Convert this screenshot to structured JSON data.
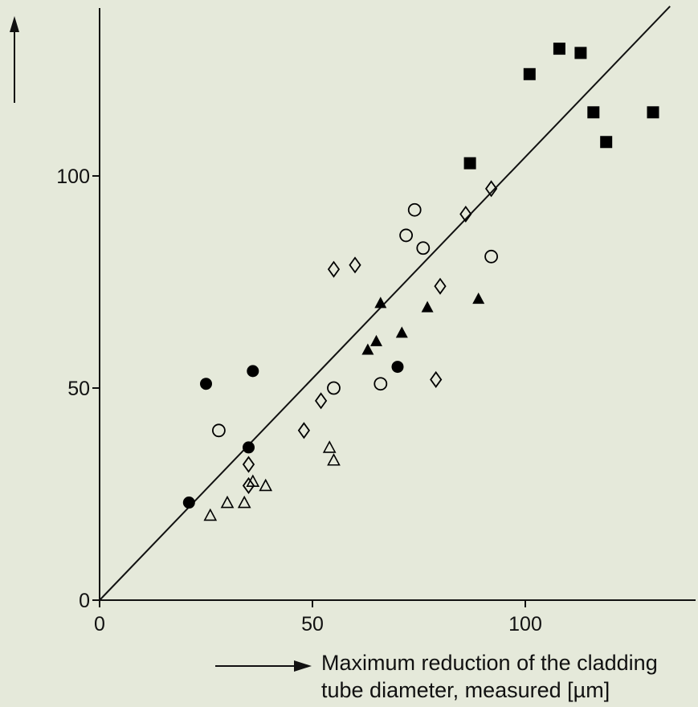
{
  "chart_data": {
    "type": "scatter",
    "xlabel_lines": [
      "Maximum reduction of the cladding",
      "tube diameter, measured [µm]"
    ],
    "ylabel": "",
    "xlim": [
      0,
      140
    ],
    "ylim": [
      0,
      140
    ],
    "x_ticks": [
      0,
      50,
      100
    ],
    "y_ticks": [
      0,
      50,
      100
    ],
    "grid": false,
    "legend": "none",
    "series": [
      {
        "marker": "filled-circle",
        "color": "#000000",
        "points": [
          [
            21,
            23
          ],
          [
            25,
            51
          ],
          [
            35,
            36
          ],
          [
            36,
            54
          ],
          [
            70,
            55
          ]
        ]
      },
      {
        "marker": "open-circle",
        "color": "#000000",
        "points": [
          [
            28,
            40
          ],
          [
            55,
            50
          ],
          [
            66,
            51
          ],
          [
            72,
            86
          ],
          [
            74,
            92
          ],
          [
            76,
            83
          ],
          [
            92,
            81
          ]
        ]
      },
      {
        "marker": "open-diamond",
        "color": "#000000",
        "points": [
          [
            35,
            27
          ],
          [
            35,
            32
          ],
          [
            48,
            40
          ],
          [
            52,
            47
          ],
          [
            55,
            78
          ],
          [
            60,
            79
          ],
          [
            79,
            52
          ],
          [
            80,
            74
          ],
          [
            86,
            91
          ],
          [
            92,
            97
          ]
        ]
      },
      {
        "marker": "open-triangle",
        "color": "#000000",
        "points": [
          [
            26,
            20
          ],
          [
            30,
            23
          ],
          [
            34,
            23
          ],
          [
            36,
            28
          ],
          [
            39,
            27
          ],
          [
            54,
            36
          ],
          [
            55,
            33
          ]
        ]
      },
      {
        "marker": "filled-triangle",
        "color": "#000000",
        "points": [
          [
            63,
            59
          ],
          [
            65,
            61
          ],
          [
            66,
            70
          ],
          [
            71,
            63
          ],
          [
            77,
            69
          ],
          [
            89,
            71
          ]
        ]
      },
      {
        "marker": "filled-square",
        "color": "#000000",
        "points": [
          [
            87,
            103
          ],
          [
            101,
            124
          ],
          [
            108,
            130
          ],
          [
            113,
            129
          ],
          [
            116,
            115
          ],
          [
            119,
            108
          ],
          [
            130,
            115
          ]
        ]
      }
    ],
    "fit_line": [
      [
        0,
        0
      ],
      [
        134,
        140
      ]
    ]
  }
}
